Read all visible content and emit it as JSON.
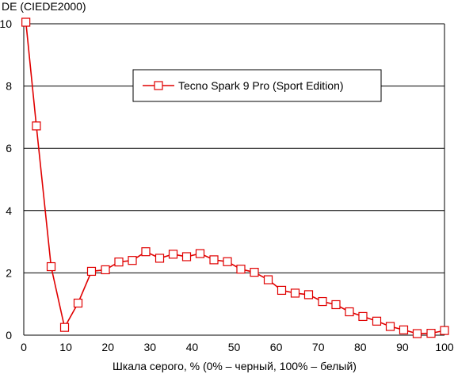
{
  "chart_data": {
    "type": "line",
    "title": "",
    "ylabel": "DE (CIEDE2000)",
    "xlabel": "Шкала серого, % (0% – черный, 100% – белый)",
    "xlim": [
      0,
      100
    ],
    "ylim": [
      0,
      10
    ],
    "x_ticks": [
      0,
      10,
      20,
      30,
      40,
      50,
      60,
      70,
      80,
      90,
      100
    ],
    "y_ticks": [
      0,
      2,
      4,
      6,
      8,
      10
    ],
    "grid": "horizontal",
    "legend_position": "top-center",
    "series": [
      {
        "name": "Tecno Spark 9 Pro (Sport Edition)",
        "color": "#e00000",
        "marker": "open-square",
        "x": [
          0.5,
          3,
          6.5,
          9.7,
          12.9,
          16.1,
          19.4,
          22.6,
          25.8,
          29,
          32.3,
          35.5,
          38.7,
          41.9,
          45.2,
          48.4,
          51.6,
          54.8,
          58.1,
          61.3,
          64.5,
          67.7,
          71,
          74.2,
          77.4,
          80.6,
          83.9,
          87.1,
          90.3,
          93.5,
          96.8,
          100
        ],
        "values": [
          10.05,
          6.72,
          2.2,
          0.25,
          1.03,
          2.05,
          2.1,
          2.35,
          2.4,
          2.68,
          2.47,
          2.6,
          2.52,
          2.62,
          2.42,
          2.36,
          2.12,
          2.02,
          1.78,
          1.44,
          1.35,
          1.3,
          1.08,
          0.98,
          0.75,
          0.6,
          0.45,
          0.28,
          0.17,
          0.05,
          0.06,
          0.15
        ]
      }
    ]
  }
}
